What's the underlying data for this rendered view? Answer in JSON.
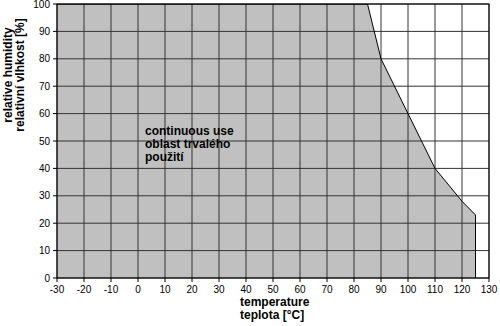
{
  "chart_data": {
    "type": "area",
    "x": [
      -30,
      85,
      90,
      100,
      110,
      120,
      125
    ],
    "values": [
      100,
      100,
      80,
      60,
      40,
      28,
      23
    ],
    "color": "#c0c0c0",
    "xlim": [
      -30,
      130
    ],
    "ylim": [
      0,
      100
    ],
    "xticks": [
      -30,
      -20,
      -10,
      0,
      10,
      20,
      30,
      40,
      50,
      60,
      70,
      80,
      90,
      100,
      110,
      120,
      130
    ],
    "yticks": [
      0,
      10,
      20,
      30,
      40,
      50,
      60,
      70,
      80,
      90,
      100
    ],
    "xlabel": [
      "temperature",
      "teplota [°C]"
    ],
    "ylabel": [
      "relative humidity",
      "relativní vlhkost [%]"
    ],
    "annotation": [
      "continuous use",
      "oblast trvalého",
      "použití"
    ],
    "grid": true
  }
}
